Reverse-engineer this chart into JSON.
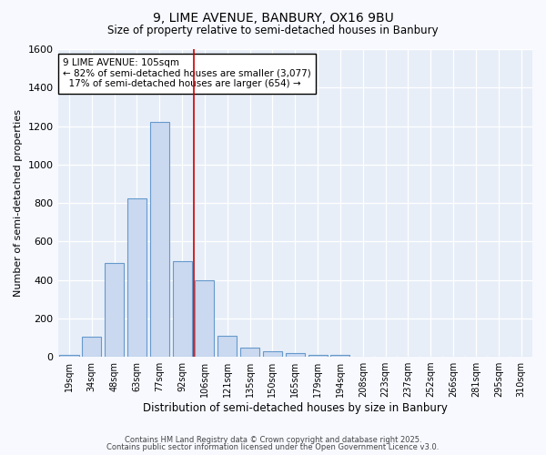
{
  "title1": "9, LIME AVENUE, BANBURY, OX16 9BU",
  "title2": "Size of property relative to semi-detached houses in Banbury",
  "xlabel": "Distribution of semi-detached houses by size in Banbury",
  "ylabel": "Number of semi-detached properties",
  "categories": [
    "19sqm",
    "34sqm",
    "48sqm",
    "63sqm",
    "77sqm",
    "92sqm",
    "106sqm",
    "121sqm",
    "135sqm",
    "150sqm",
    "165sqm",
    "179sqm",
    "194sqm",
    "208sqm",
    "223sqm",
    "237sqm",
    "252sqm",
    "266sqm",
    "281sqm",
    "295sqm",
    "310sqm"
  ],
  "bar_values": [
    10,
    105,
    490,
    825,
    1220,
    495,
    400,
    110,
    50,
    30,
    20,
    12,
    10,
    2,
    0,
    0,
    0,
    0,
    0,
    0,
    0
  ],
  "bar_color": "#cad9f0",
  "bar_edge_color": "#6699cc",
  "vline_color": "#cc0000",
  "vline_index": 6,
  "ylim": [
    0,
    1600
  ],
  "yticks": [
    0,
    200,
    400,
    600,
    800,
    1000,
    1200,
    1400,
    1600
  ],
  "annotation_text": "9 LIME AVENUE: 105sqm\n← 82% of semi-detached houses are smaller (3,077)\n  17% of semi-detached houses are larger (654) →",
  "footer1": "Contains HM Land Registry data © Crown copyright and database right 2025.",
  "footer2": "Contains public sector information licensed under the Open Government Licence v3.0.",
  "bg_color": "#f7f9ff",
  "plot_bg_color": "#e8eef8"
}
